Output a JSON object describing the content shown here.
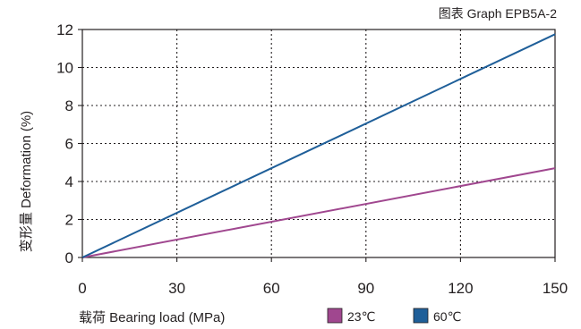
{
  "chart_data": {
    "type": "line",
    "title": "图表 Graph EPB5A-2",
    "xlabel": "载荷 Bearing load (MPa)",
    "ylabel": "变形量 Deformation (%)",
    "x": [
      0,
      150
    ],
    "xlim": [
      0,
      150
    ],
    "ylim": [
      0,
      12
    ],
    "x_ticks": [
      "0",
      "30",
      "60",
      "90",
      "120",
      "150"
    ],
    "y_ticks": [
      "0",
      "2",
      "4",
      "6",
      "8",
      "10",
      "12"
    ],
    "grid": true,
    "legend_position": "bottom-right",
    "series": [
      {
        "name": "23℃",
        "color": "#a0478f",
        "values": [
          0,
          4.7
        ]
      },
      {
        "name": "60℃",
        "color": "#1f5f99",
        "values": [
          0,
          11.75
        ]
      }
    ]
  }
}
